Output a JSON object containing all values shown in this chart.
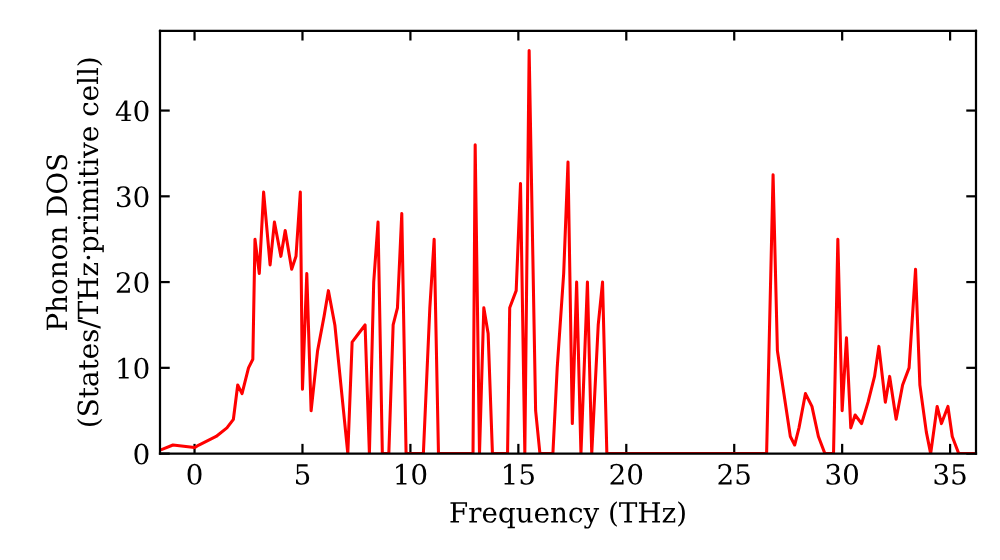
{
  "chart_data": {
    "type": "line",
    "xlabel": "Frequency (THz)",
    "ylabel": "Phonon DOS\n(States/THz·primitive cell)",
    "x": [
      -1.5,
      -1,
      0,
      0.2,
      1,
      1.5,
      1.8,
      2,
      2.2,
      2.5,
      2.7,
      2.8,
      3,
      3.2,
      3.5,
      3.7,
      4,
      4.2,
      4.5,
      4.7,
      4.9,
      5.0,
      5.2,
      5.4,
      5.7,
      6,
      6.2,
      6.5,
      6.9,
      7.1,
      7.3,
      7.6,
      7.9,
      8.1,
      8.3,
      8.5,
      8.7,
      9,
      9.2,
      9.4,
      9.6,
      9.8,
      10.6,
      10.9,
      11.1,
      11.3,
      12.9,
      13.0,
      13.2,
      13.4,
      13.6,
      13.8,
      14.5,
      14.6,
      14.9,
      15.1,
      15.3,
      15.5,
      15.8,
      16.0,
      16.6,
      16.8,
      17.1,
      17.3,
      17.5,
      17.7,
      17.9,
      18.2,
      18.4,
      18.7,
      18.9,
      19.1,
      26.5,
      26.8,
      27,
      27.3,
      27.6,
      27.8,
      28,
      28.3,
      28.6,
      28.9,
      29.2,
      29.6,
      29.8,
      30,
      30.2,
      30.4,
      30.6,
      30.9,
      31.2,
      31.5,
      31.7,
      32,
      32.2,
      32.5,
      32.8,
      33.1,
      33.4,
      33.6,
      33.9,
      34.1,
      34.4,
      34.6,
      34.9,
      35.1,
      35.4,
      36.2
    ],
    "series": [
      {
        "color": "#ff0000",
        "values": [
          0.5,
          1,
          0.7,
          1,
          2,
          3,
          4,
          8,
          7,
          10,
          11,
          25,
          21,
          30.5,
          22,
          27,
          23,
          26,
          21.5,
          23,
          30.5,
          7.5,
          21,
          5,
          12,
          16,
          19,
          15,
          5,
          0,
          13,
          14,
          15,
          0,
          20,
          27,
          0,
          0,
          15,
          17,
          28,
          0,
          0,
          17,
          25,
          0,
          0,
          36,
          0,
          17,
          14,
          0,
          0,
          17,
          19,
          31.5,
          0,
          47,
          5,
          0,
          0,
          10,
          21,
          34,
          3.5,
          20,
          0,
          20,
          0,
          15,
          20,
          0,
          0,
          32.5,
          12,
          7,
          2,
          1,
          3,
          7,
          5.5,
          2,
          0,
          0,
          25,
          5,
          13.5,
          3,
          4.5,
          3.5,
          6,
          9,
          12.5,
          6,
          9,
          4,
          8,
          10,
          21.5,
          8,
          2.5,
          0,
          5.5,
          3.5,
          5.5,
          2,
          0,
          0
        ]
      }
    ],
    "xlim": [
      -1.6,
      36.2
    ],
    "ylim": [
      0,
      49.3
    ],
    "xticks": [
      0,
      5,
      10,
      15,
      20,
      25,
      30,
      35
    ],
    "yticks": [
      0,
      10,
      20,
      30,
      40
    ],
    "grid": false,
    "legend": false,
    "marker": "none",
    "line_style": "solid"
  }
}
